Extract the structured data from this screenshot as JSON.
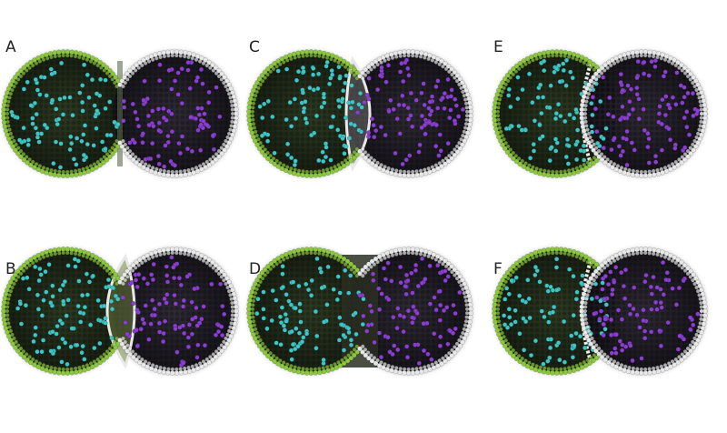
{
  "figure": {
    "panels": [
      {
        "label": "A",
        "style": "flat"
      },
      {
        "label": "B",
        "style": "bulge-left"
      },
      {
        "label": "C",
        "style": "bulge-right"
      },
      {
        "label": "D",
        "style": "merged"
      },
      {
        "label": "E",
        "style": "overlap-right"
      },
      {
        "label": "F",
        "style": "overlap-right"
      }
    ],
    "colors": {
      "green_membrane": "#8dc63f",
      "white_membrane": "#e8e8e8",
      "cyan_particle": "#3fc5c5",
      "purple_particle": "#8a3fd0",
      "dark_bg": "#1b2218"
    }
  }
}
